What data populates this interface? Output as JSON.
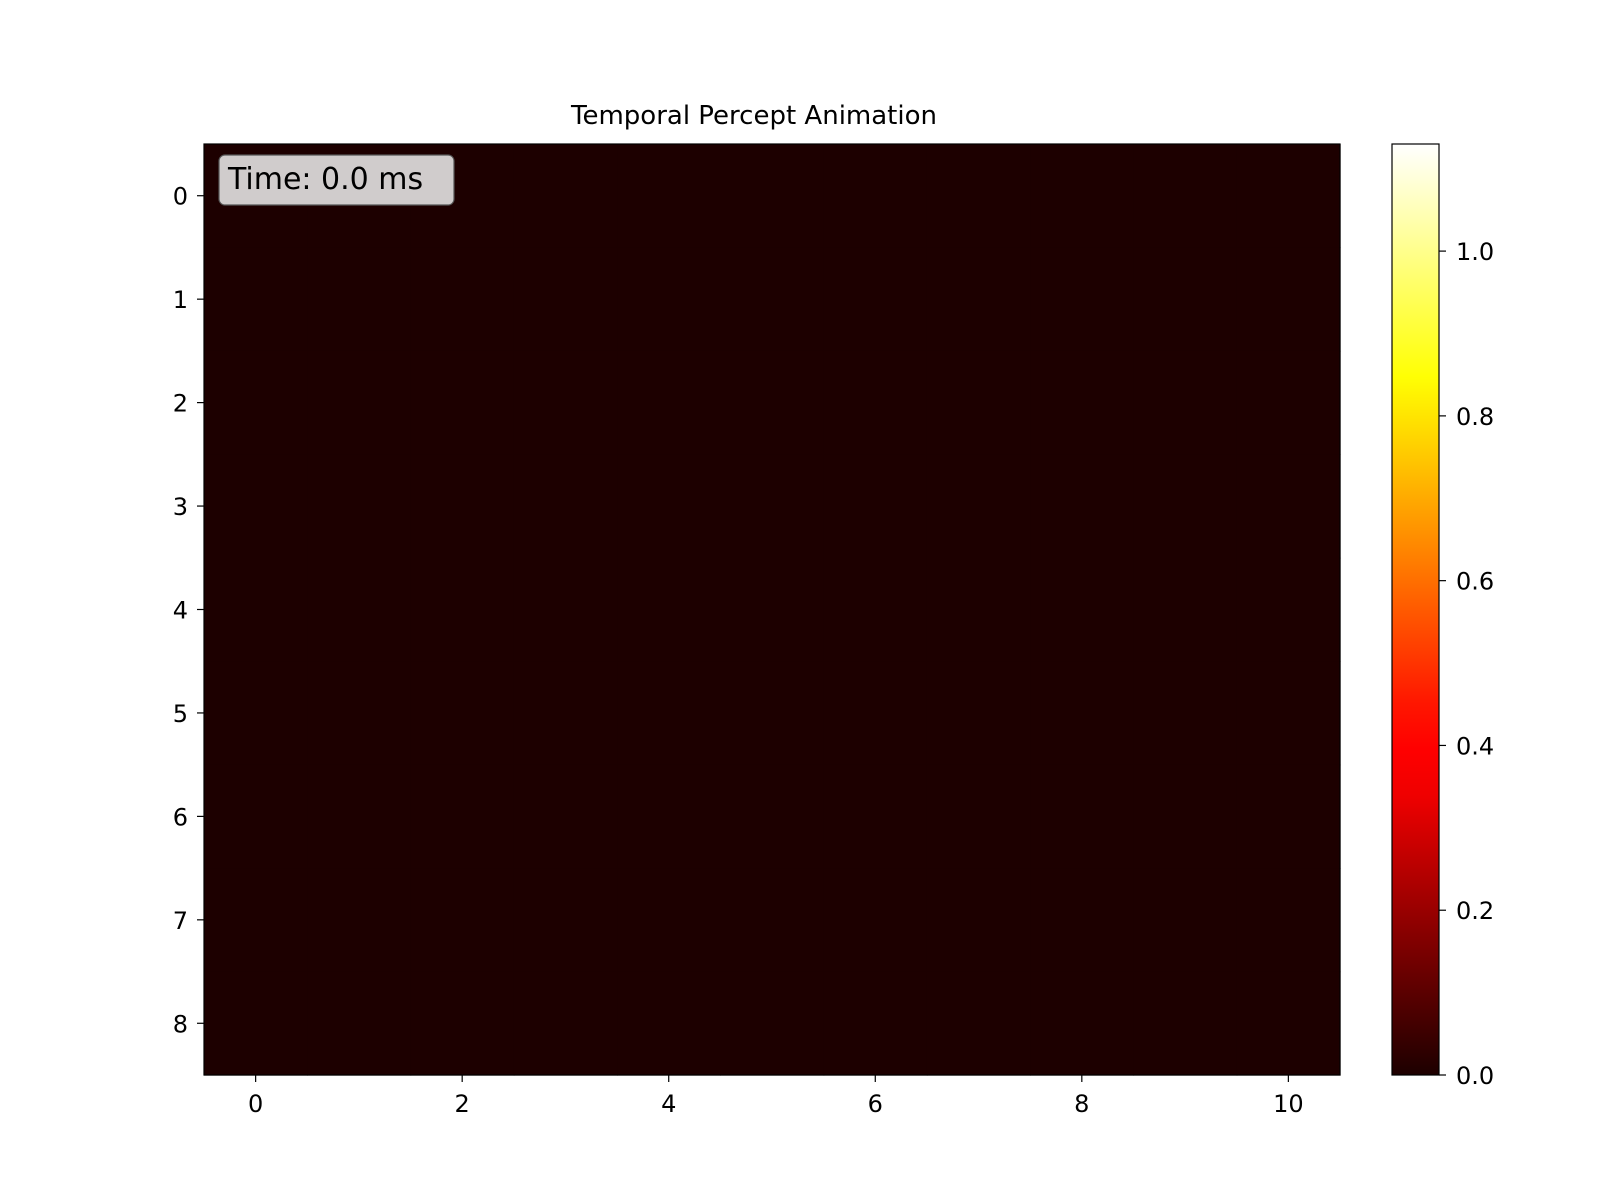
{
  "chart_data": {
    "type": "heatmap",
    "title": "Temporal Percept Animation",
    "annotation": "Time: 0.0 ms",
    "x_range": [
      -0.5,
      10.5
    ],
    "y_range": [
      -0.5,
      8.5
    ],
    "x_ticks": [
      0,
      2,
      4,
      6,
      8,
      10
    ],
    "y_ticks": [
      0,
      1,
      2,
      3,
      4,
      5,
      6,
      7,
      8
    ],
    "rows": 9,
    "cols": 11,
    "values": [
      [
        0,
        0,
        0,
        0,
        0,
        0,
        0,
        0,
        0,
        0,
        0
      ],
      [
        0,
        0,
        0,
        0,
        0,
        0,
        0,
        0,
        0,
        0,
        0
      ],
      [
        0,
        0,
        0,
        0,
        0,
        0,
        0,
        0,
        0,
        0,
        0
      ],
      [
        0,
        0,
        0,
        0,
        0,
        0,
        0,
        0,
        0,
        0,
        0
      ],
      [
        0,
        0,
        0,
        0,
        0,
        0,
        0,
        0,
        0,
        0,
        0
      ],
      [
        0,
        0,
        0,
        0,
        0,
        0,
        0,
        0,
        0,
        0,
        0
      ],
      [
        0,
        0,
        0,
        0,
        0,
        0,
        0,
        0,
        0,
        0,
        0
      ],
      [
        0,
        0,
        0,
        0,
        0,
        0,
        0,
        0,
        0,
        0,
        0
      ],
      [
        0,
        0,
        0,
        0,
        0,
        0,
        0,
        0,
        0,
        0,
        0
      ]
    ],
    "colormap": "hot",
    "colorbar": {
      "range": [
        0.0,
        1.13
      ],
      "ticks": [
        0.0,
        0.2,
        0.4,
        0.6,
        0.8,
        1.0
      ],
      "tick_labels": [
        "0.0",
        "0.2",
        "0.4",
        "0.6",
        "0.8",
        "1.0"
      ]
    },
    "grid": false
  }
}
